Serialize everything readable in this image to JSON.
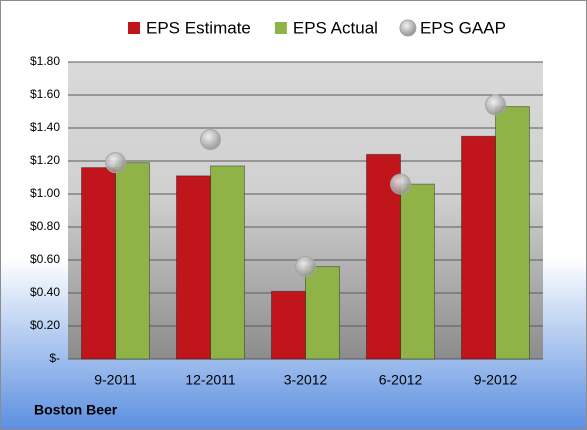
{
  "chart_data": {
    "type": "bar",
    "caption": "Boston Beer",
    "categories": [
      "9-2011",
      "12-2011",
      "3-2012",
      "6-2012",
      "9-2012"
    ],
    "series": [
      {
        "name": "EPS Estimate",
        "color": "#c0151b",
        "values": [
          1.16,
          1.11,
          0.41,
          1.24,
          1.35
        ]
      },
      {
        "name": "EPS Actual",
        "color": "#8fb347",
        "values": [
          1.19,
          1.17,
          0.56,
          1.06,
          1.53
        ]
      },
      {
        "name": "EPS GAAP",
        "color": "#a6a6a6",
        "type": "scatter",
        "values": [
          1.19,
          1.33,
          0.56,
          1.06,
          1.54
        ]
      }
    ],
    "ylim": [
      0,
      1.8
    ],
    "yticks": [
      {
        "value": 0,
        "label": "$-"
      },
      {
        "value": 0.2,
        "label": "$0.20"
      },
      {
        "value": 0.4,
        "label": "$0.40"
      },
      {
        "value": 0.6,
        "label": "$0.60"
      },
      {
        "value": 0.8,
        "label": "$0.80"
      },
      {
        "value": 1.0,
        "label": "$1.00"
      },
      {
        "value": 1.2,
        "label": "$1.20"
      },
      {
        "value": 1.4,
        "label": "$1.40"
      },
      {
        "value": 1.6,
        "label": "$1.60"
      },
      {
        "value": 1.8,
        "label": "$1.80"
      }
    ],
    "grid": true,
    "legend": "top"
  }
}
